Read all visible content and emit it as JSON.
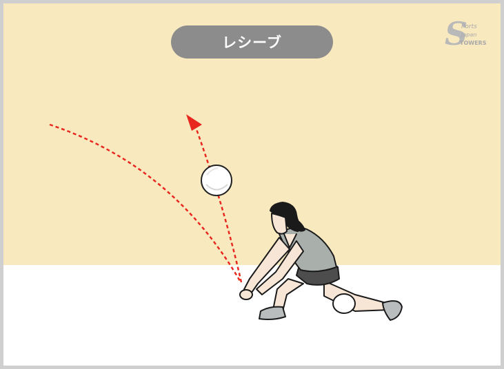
{
  "title": "レシーブ",
  "logo": {
    "name": "sports-logo",
    "letter": "S",
    "text_line1": "Ports",
    "text_line2": "Japan",
    "text_line3": "TOWERS"
  },
  "colors": {
    "wall": "#f9e9bf",
    "floor": "#ffffff",
    "title_pill": "#8c8c8c",
    "trajectory": "#e8281e",
    "jersey": "#a9b0ac",
    "shorts": "#4d4d4d",
    "skin": "#f7e6d6",
    "hair": "#1a1a1a"
  }
}
